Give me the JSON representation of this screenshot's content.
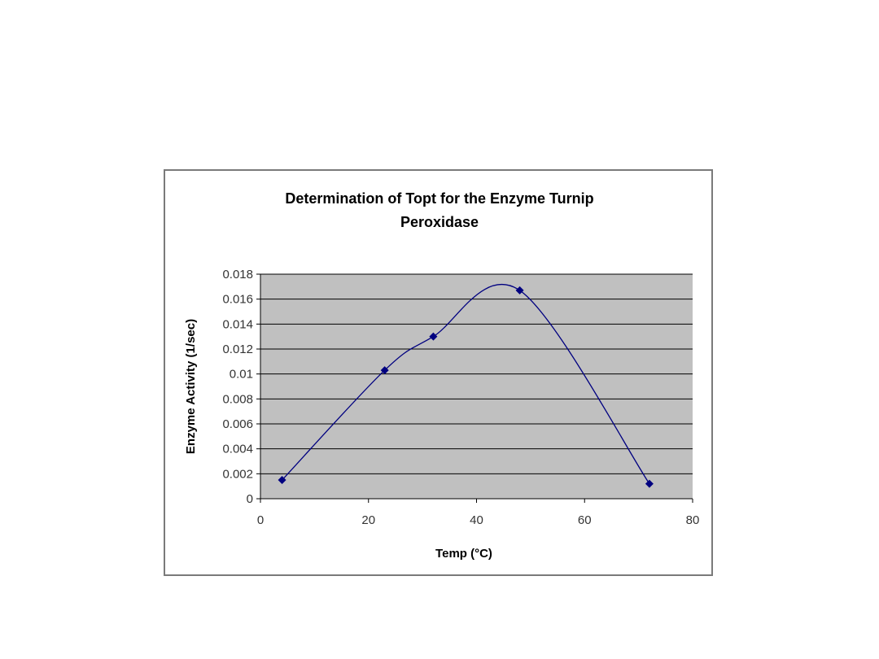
{
  "chart_data": {
    "type": "scatter",
    "title_lines": [
      "Determination of Topt for the Enzyme Turnip",
      "Peroxidase"
    ],
    "xlabel": "Temp (°C)",
    "ylabel": "Enzyme Activity (1/sec)",
    "xlim": [
      0,
      80
    ],
    "ylim": [
      0,
      0.018
    ],
    "x_ticks": [
      "0",
      "20",
      "40",
      "60",
      "80"
    ],
    "y_ticks": [
      "0",
      "0.002",
      "0.004",
      "0.006",
      "0.008",
      "0.01",
      "0.012",
      "0.014",
      "0.016",
      "0.018"
    ],
    "series": [
      {
        "x": [
          4,
          23,
          32,
          48,
          72
        ],
        "y": [
          0.0015,
          0.0103,
          0.013,
          0.0167,
          0.0012
        ],
        "smoothed_line": true,
        "marker": "diamond"
      }
    ],
    "grid": "horizontal",
    "legend": "none",
    "colors": {
      "plot_background": "#c0c0c0",
      "gridline": "#000000",
      "series": "#000080",
      "frame_border": "#7a7a7a"
    }
  }
}
